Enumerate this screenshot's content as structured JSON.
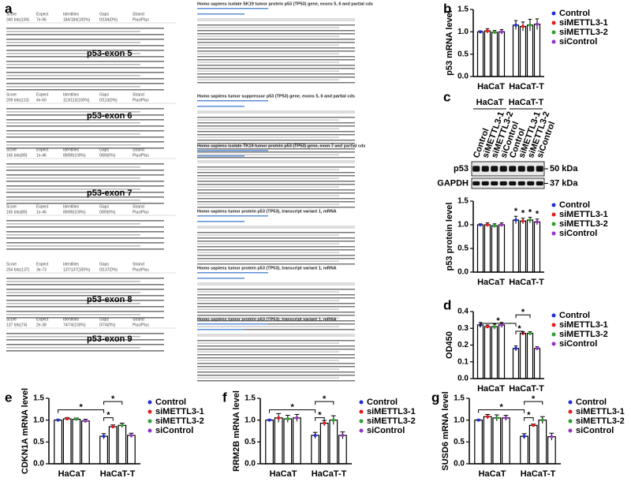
{
  "panel_labels": [
    "a",
    "b",
    "c",
    "d",
    "e",
    "f",
    "g"
  ],
  "alignment": {
    "fields": [
      "Score",
      "Expect",
      "Identities",
      "Gaps",
      "Strand"
    ],
    "exons": [
      "p53-exon 5",
      "p53-exon 6",
      "p53-exon 7",
      "p53-exon 8",
      "p53-exon 9"
    ],
    "scores": [
      [
        "340 bits(184)",
        "7e-96",
        "184/184(100%)",
        "0/184(0%)",
        "Plus/Plus"
      ],
      [
        "209 bits(113)",
        "4e-60",
        "113/113(100%)",
        "0/113(0%)",
        "Plus/Plus"
      ],
      [
        "165 bits(89)",
        "1e-46",
        "89/89(100%)",
        "0/89(0%)",
        "Plus/Plus"
      ],
      [
        "165 bits(89)",
        "1e-46",
        "89/89(100%)",
        "0/89(0%)",
        "Plus/Plus"
      ],
      [
        "254 bits(137)",
        "3e-73",
        "137/137(100%)",
        "0/137(0%)",
        "Plus/Plus"
      ],
      [
        "137 bits(74)",
        "2e-38",
        "74/74(100%)",
        "0/74(0%)",
        "Plus/Plus"
      ]
    ],
    "hits": [
      "Homo sapiens isolate SK19 tumor protein p53 (TP53) gene, exons 5, 6 and partial cds",
      "Homo sapiens tumor suppressor p53 (TP53) gene, exons 5, 6 and partial cds",
      "Homo sapiens isolate TK19 tumor protein p53 (TP53) gene, exon 7 and partial cds",
      "Homo sapiens tumor protein p53 (TP53), transcript variant 1, mRNA",
      "Homo sapiens tumor protein p53 (TP53), transcript variant 1, mRNA",
      "Homo sapiens tumor protein p53 (TP53), transcript variant 1, mRNA"
    ]
  },
  "blot": {
    "groups": [
      "HaCaT",
      "HaCaT-T"
    ],
    "lanes": [
      "Control",
      "siMETTL3-1",
      "siMETTL3-2",
      "siControl"
    ],
    "rows": [
      "p53",
      "GAPDH"
    ],
    "sizes": [
      "50 kDa",
      "37 kDa"
    ]
  },
  "chart_data": [
    {
      "type": "bar",
      "ylabel": "p53 mRNA level",
      "categories": [
        "HaCaT",
        "HaCaT-T"
      ],
      "series": [
        {
          "name": "Control",
          "color": "#1f2fd6",
          "values": [
            1.0,
            1.15
          ],
          "errors": [
            0.02,
            0.1
          ]
        },
        {
          "name": "siMETTL3-1",
          "color": "#e41a1c",
          "values": [
            1.02,
            1.12
          ],
          "errors": [
            0.05,
            0.1
          ]
        },
        {
          "name": "siMETTL3-2",
          "color": "#2ca02c",
          "values": [
            0.99,
            1.15
          ],
          "errors": [
            0.04,
            0.13
          ]
        },
        {
          "name": "siControl",
          "color": "#9b30c8",
          "values": [
            1.0,
            1.17
          ],
          "errors": [
            0.05,
            0.12
          ]
        }
      ],
      "ylim": [
        0,
        1.5
      ],
      "yticks": [
        {
          "value": 0,
          "label": "0.0"
        },
        {
          "value": 0.5,
          "label": "0.5"
        },
        {
          "value": 1,
          "label": "1.0"
        },
        {
          "value": 1.5,
          "label": "1.5"
        }
      ],
      "annotations": []
    },
    {
      "type": "bar",
      "ylabel": "p53 protein level",
      "categories": [
        "HaCaT",
        "HaCaT-T"
      ],
      "series": [
        {
          "name": "Control",
          "color": "#1f2fd6",
          "values": [
            1.0,
            1.1
          ],
          "errors": [
            0.02,
            0.08
          ]
        },
        {
          "name": "siMETTL3-1",
          "color": "#e41a1c",
          "values": [
            1.0,
            1.08
          ],
          "errors": [
            0.04,
            0.06
          ]
        },
        {
          "name": "siMETTL3-2",
          "color": "#2ca02c",
          "values": [
            0.98,
            1.1
          ],
          "errors": [
            0.04,
            0.06
          ]
        },
        {
          "name": "siControl",
          "color": "#9b30c8",
          "values": [
            1.0,
            1.06
          ],
          "errors": [
            0.04,
            0.06
          ]
        }
      ],
      "ylim": [
        0,
        1.5
      ],
      "yticks": [
        {
          "value": 0,
          "label": "0.0"
        },
        {
          "value": 0.5,
          "label": "0.5"
        },
        {
          "value": 1,
          "label": "1.0"
        },
        {
          "value": 1.5,
          "label": "1.5"
        }
      ],
      "annotations": [
        "*",
        "*",
        "*",
        "*"
      ]
    },
    {
      "type": "bar",
      "ylabel": "OD450",
      "categories": [
        "HaCaT",
        "HaCaT-T"
      ],
      "series": [
        {
          "name": "Control",
          "color": "#1f2fd6",
          "values": [
            0.32,
            0.18
          ],
          "errors": [
            0.015,
            0.015
          ]
        },
        {
          "name": "siMETTL3-1",
          "color": "#e41a1c",
          "values": [
            0.31,
            0.27
          ],
          "errors": [
            0.01,
            0.01
          ]
        },
        {
          "name": "siMETTL3-2",
          "color": "#2ca02c",
          "values": [
            0.31,
            0.27
          ],
          "errors": [
            0.015,
            0.01
          ]
        },
        {
          "name": "siControl",
          "color": "#9b30c8",
          "values": [
            0.32,
            0.18
          ],
          "errors": [
            0.015,
            0.01
          ]
        }
      ],
      "ylim": [
        0,
        0.4
      ],
      "yticks": [
        {
          "value": 0,
          "label": "0.0"
        },
        0.1,
        0.2,
        0.3,
        0.4
      ],
      "annotations": [
        "*",
        "*",
        "*"
      ]
    },
    {
      "type": "bar",
      "ylabel": "CDKN1A mRNA level",
      "categories": [
        "HaCaT",
        "HaCaT-T"
      ],
      "series": [
        {
          "name": "Control",
          "color": "#1f2fd6",
          "values": [
            1.0,
            0.63
          ],
          "errors": [
            0.01,
            0.06
          ]
        },
        {
          "name": "siMETTL3-1",
          "color": "#e41a1c",
          "values": [
            1.03,
            0.85
          ],
          "errors": [
            0.03,
            0.04
          ]
        },
        {
          "name": "siMETTL3-2",
          "color": "#2ca02c",
          "values": [
            1.02,
            0.88
          ],
          "errors": [
            0.03,
            0.05
          ]
        },
        {
          "name": "siControl",
          "color": "#9b30c8",
          "values": [
            0.98,
            0.65
          ],
          "errors": [
            0.04,
            0.05
          ]
        }
      ],
      "ylim": [
        0,
        1.5
      ],
      "yticks": [
        {
          "value": 0,
          "label": "0.0"
        },
        {
          "value": 0.5,
          "label": "0.5"
        },
        {
          "value": 1,
          "label": "1.0"
        },
        {
          "value": 1.5,
          "label": "1.5"
        }
      ],
      "annotations": [
        "*",
        "*",
        "*"
      ]
    },
    {
      "type": "bar",
      "ylabel": "RRM2B mRNA level",
      "categories": [
        "HaCaT",
        "HaCaT-T"
      ],
      "series": [
        {
          "name": "Control",
          "color": "#1f2fd6",
          "values": [
            1.0,
            0.65
          ],
          "errors": [
            0.01,
            0.07
          ]
        },
        {
          "name": "siMETTL3-1",
          "color": "#e41a1c",
          "values": [
            1.05,
            0.93
          ],
          "errors": [
            0.1,
            0.06
          ]
        },
        {
          "name": "siMETTL3-2",
          "color": "#2ca02c",
          "values": [
            1.03,
            1.0
          ],
          "errors": [
            0.08,
            0.1
          ]
        },
        {
          "name": "siControl",
          "color": "#9b30c8",
          "values": [
            1.05,
            0.65
          ],
          "errors": [
            0.08,
            0.08
          ]
        }
      ],
      "ylim": [
        0,
        1.5
      ],
      "yticks": [
        {
          "value": 0,
          "label": "0.0"
        },
        {
          "value": 0.5,
          "label": "0.5"
        },
        {
          "value": 1,
          "label": "1.0"
        },
        {
          "value": 1.5,
          "label": "1.5"
        }
      ],
      "annotations": [
        "*",
        "*",
        "*"
      ]
    },
    {
      "type": "bar",
      "ylabel": "SUSD6 mRNA level",
      "categories": [
        "HaCaT",
        "HaCaT-T"
      ],
      "series": [
        {
          "name": "Control",
          "color": "#1f2fd6",
          "values": [
            1.0,
            0.63
          ],
          "errors": [
            0.01,
            0.06
          ]
        },
        {
          "name": "siMETTL3-1",
          "color": "#e41a1c",
          "values": [
            1.08,
            0.88
          ],
          "errors": [
            0.05,
            0.03
          ]
        },
        {
          "name": "siMETTL3-2",
          "color": "#2ca02c",
          "values": [
            1.05,
            1.0
          ],
          "errors": [
            0.07,
            0.08
          ]
        },
        {
          "name": "siControl",
          "color": "#9b30c8",
          "values": [
            1.05,
            0.62
          ],
          "errors": [
            0.06,
            0.08
          ]
        }
      ],
      "ylim": [
        0,
        1.5
      ],
      "yticks": [
        {
          "value": 0,
          "label": "0.0"
        },
        {
          "value": 0.5,
          "label": "0.5"
        },
        {
          "value": 1,
          "label": "1.0"
        },
        {
          "value": 1.5,
          "label": "1.5"
        }
      ],
      "annotations": [
        "*",
        "*",
        "*"
      ]
    }
  ]
}
